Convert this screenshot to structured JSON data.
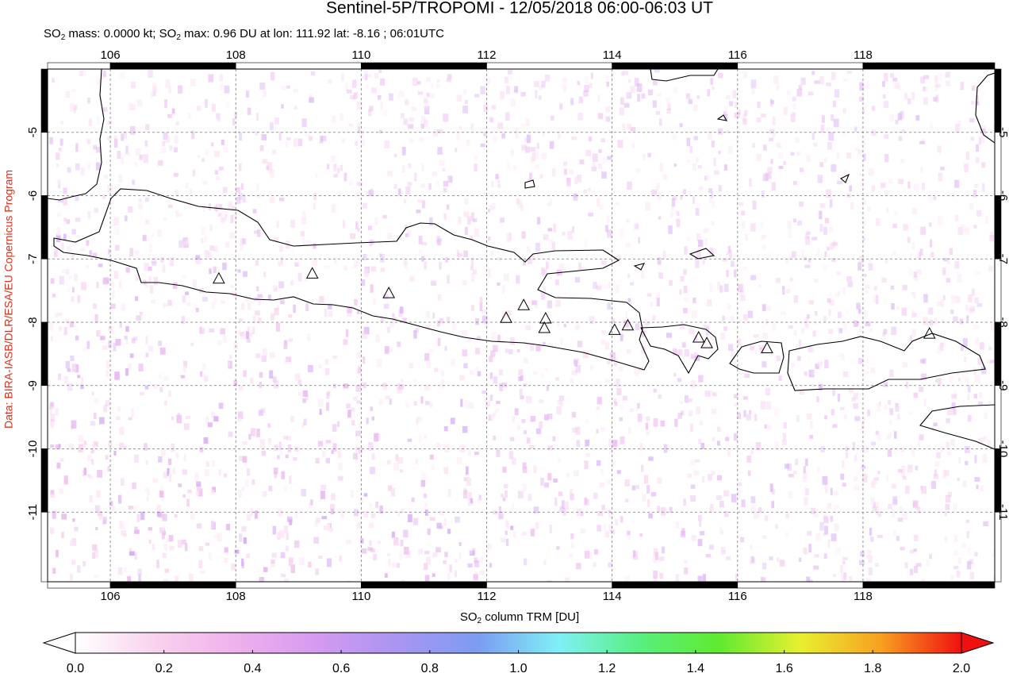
{
  "chart_data": {
    "type": "map",
    "title": "Sentinel-5P/TROPOMI - 12/05/2018 06:00-06:03 UT",
    "subtitle_parts": [
      "SO",
      "2",
      " mass: 0.0000 kt; SO",
      "2",
      " max: 0.96 DU at lon: 111.92 lat: -8.16 ; 06:01UTC"
    ],
    "credit": "Data: BIRA-IASB/DLR/ESA/EU Copernicus Program",
    "xlim": [
      105,
      120.1
    ],
    "ylim": [
      -4,
      -12.1
    ],
    "xticks": [
      106,
      108,
      110,
      112,
      114,
      116,
      118
    ],
    "yticks": [
      -5,
      -6,
      -7,
      -8,
      -9,
      -10,
      -11
    ],
    "grid": true,
    "volcanoes": {
      "lon": [
        107.73,
        109.22,
        110.44,
        112.31,
        112.59,
        112.94,
        112.92,
        114.04,
        114.25,
        115.38,
        115.51,
        116.47,
        119.06
      ],
      "lat": [
        -7.32,
        -7.24,
        -7.55,
        -7.94,
        -7.74,
        -7.95,
        -8.1,
        -8.13,
        -8.06,
        -8.25,
        -8.34,
        -8.42,
        -8.19
      ]
    },
    "colorbar": {
      "label_parts": [
        "SO",
        "2",
        " column TRM [DU]"
      ],
      "lim": [
        0,
        2
      ],
      "ticks": [
        {
          "value": 0,
          "label": "0.0"
        },
        0.2,
        0.4,
        0.6,
        0.8,
        {
          "value": 1,
          "label": "1.0"
        },
        1.2,
        1.4,
        1.6,
        1.8,
        {
          "value": 2,
          "label": "2.0"
        }
      ],
      "colors": [
        "#ffffff",
        "#f8d2ee",
        "#f0b0ec",
        "#d59af0",
        "#a995f2",
        "#7c9cf2",
        "#7ff0f6",
        "#58ef80",
        "#60ea30",
        "#e8f030",
        "#f8a020",
        "#f01010"
      ]
    }
  }
}
